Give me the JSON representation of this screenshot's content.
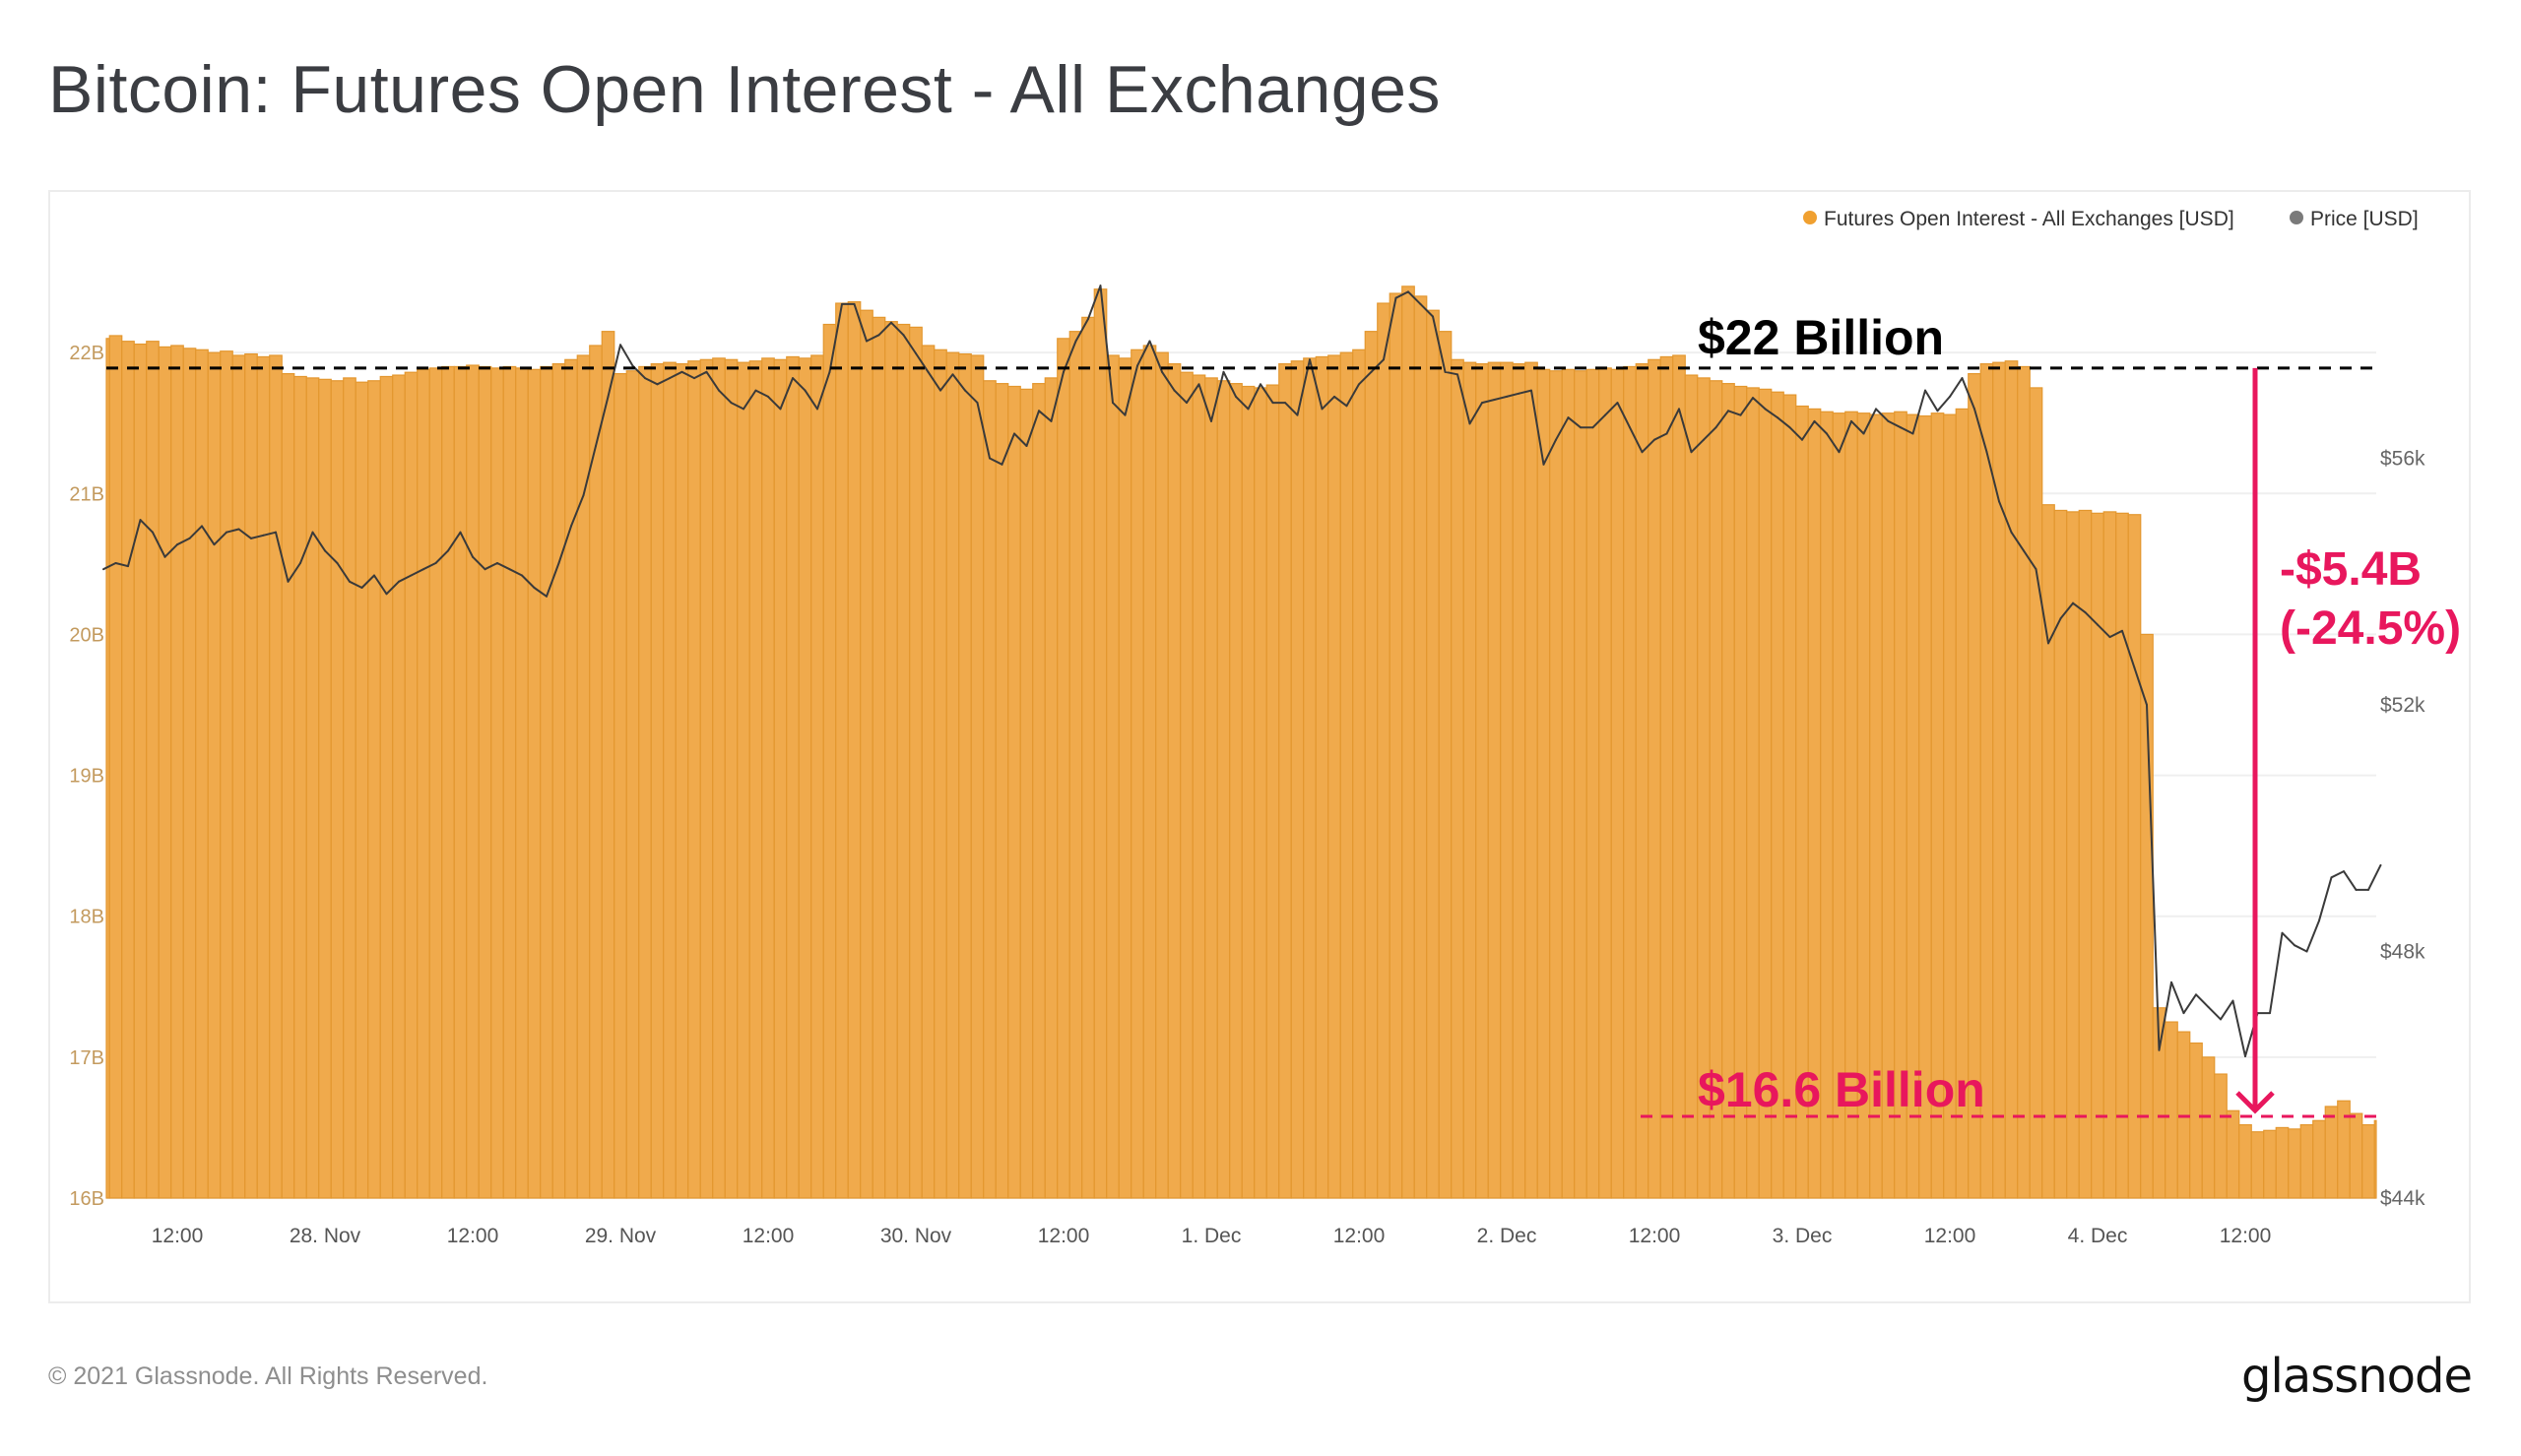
{
  "title": "Bitcoin: Futures Open Interest - All Exchanges",
  "footer": {
    "copyright": "© 2021 Glassnode. All Rights Reserved.",
    "logo": "glassnode"
  },
  "watermark": "glassnode",
  "colors": {
    "open_interest": "#f0aa4c",
    "open_interest_edge": "#e3972f",
    "price": "#3a3a3a",
    "annotation_red": "#e8175d",
    "annotation_black": "#000000"
  },
  "legend": [
    {
      "label": "Futures Open Interest - All Exchanges [USD]",
      "color": "#f0a030"
    },
    {
      "label": "Price [USD]",
      "color": "#7a7a7a"
    }
  ],
  "annotations": {
    "top_line_label": "$22 Billion",
    "top_line_value": 21.89,
    "bottom_line_label": "$16.6 Billion",
    "bottom_line_value": 16.58,
    "change_label": "-$5.4B",
    "change_pct_label": "(-24.5%)"
  },
  "chart_data": {
    "type": "bar+line",
    "title": "Bitcoin: Futures Open Interest - All Exchanges",
    "x_start": "2021-11-27 06:00",
    "x_step_hours": 1,
    "x_ticks": [
      {
        "hour": -12,
        "label": "12:00"
      },
      {
        "hour": 0,
        "label": "28. Nov"
      },
      {
        "hour": 12,
        "label": "12:00"
      },
      {
        "hour": 24,
        "label": "29. Nov"
      },
      {
        "hour": 36,
        "label": "12:00"
      },
      {
        "hour": 48,
        "label": "30. Nov"
      },
      {
        "hour": 60,
        "label": "12:00"
      },
      {
        "hour": 72,
        "label": "1. Dec"
      },
      {
        "hour": 84,
        "label": "12:00"
      },
      {
        "hour": 96,
        "label": "2. Dec"
      },
      {
        "hour": 108,
        "label": "12:00"
      },
      {
        "hour": 120,
        "label": "3. Dec"
      },
      {
        "hour": 132,
        "label": "12:00"
      },
      {
        "hour": 144,
        "label": "4. Dec"
      },
      {
        "hour": 156,
        "label": "12:00"
      }
    ],
    "y_left": {
      "ylim": [
        16,
        23
      ],
      "ticks": [
        16,
        17,
        18,
        19,
        20,
        21,
        22
      ],
      "tick_labels": [
        "16B",
        "17B",
        "18B",
        "19B",
        "20B",
        "21B",
        "22B"
      ],
      "grid": true
    },
    "y_right": {
      "ylim": [
        44,
        60
      ],
      "ticks": [
        44,
        48,
        52,
        56
      ],
      "tick_labels": [
        "$44k",
        "$48k",
        "$52k",
        "$56k"
      ]
    },
    "legend_position": "top-right",
    "series": [
      {
        "name": "Futures Open Interest - All Exchanges [USD]",
        "type": "bar",
        "axis": "left",
        "unit": "B USD",
        "values": [
          22.1,
          22.12,
          22.08,
          22.06,
          22.08,
          22.04,
          22.05,
          22.03,
          22.02,
          22.0,
          22.01,
          21.98,
          21.99,
          21.97,
          21.98,
          21.85,
          21.83,
          21.82,
          21.81,
          21.8,
          21.82,
          21.79,
          21.8,
          21.83,
          21.84,
          21.86,
          21.88,
          21.89,
          21.9,
          21.9,
          21.91,
          21.9,
          21.89,
          21.9,
          21.89,
          21.88,
          21.9,
          21.92,
          21.95,
          21.98,
          22.05,
          22.15,
          21.85,
          21.87,
          21.9,
          21.92,
          21.93,
          21.92,
          21.94,
          21.95,
          21.96,
          21.95,
          21.93,
          21.94,
          21.96,
          21.95,
          21.97,
          21.96,
          21.98,
          22.2,
          22.35,
          22.36,
          22.3,
          22.25,
          22.22,
          22.2,
          22.18,
          22.05,
          22.02,
          22.0,
          21.99,
          21.98,
          21.8,
          21.78,
          21.76,
          21.74,
          21.78,
          21.82,
          22.1,
          22.15,
          22.25,
          22.45,
          21.98,
          21.96,
          22.02,
          22.05,
          22.0,
          21.92,
          21.86,
          21.84,
          21.82,
          21.8,
          21.78,
          21.76,
          21.75,
          21.77,
          21.92,
          21.94,
          21.96,
          21.97,
          21.98,
          22.0,
          22.02,
          22.15,
          22.35,
          22.42,
          22.47,
          22.4,
          22.3,
          22.15,
          21.95,
          21.93,
          21.92,
          21.93,
          21.93,
          21.92,
          21.93,
          21.88,
          21.87,
          21.88,
          21.87,
          21.88,
          21.89,
          21.88,
          21.9,
          21.92,
          21.95,
          21.97,
          21.98,
          21.84,
          21.82,
          21.8,
          21.78,
          21.76,
          21.75,
          21.74,
          21.72,
          21.7,
          21.62,
          21.6,
          21.58,
          21.57,
          21.58,
          21.57,
          21.56,
          21.57,
          21.58,
          21.56,
          21.55,
          21.57,
          21.56,
          21.6,
          21.85,
          21.92,
          21.93,
          21.94,
          21.9,
          21.75,
          20.92,
          20.88,
          20.87,
          20.88,
          20.86,
          20.87,
          20.86,
          20.85,
          20.0,
          17.35,
          17.25,
          17.18,
          17.1,
          17.0,
          16.88,
          16.62,
          16.52,
          16.47,
          16.48,
          16.5,
          16.49,
          16.52,
          16.55,
          16.65,
          16.69,
          16.6,
          16.52,
          16.55
        ]
      },
      {
        "name": "Price [USD]",
        "type": "line",
        "axis": "right",
        "unit": "k USD",
        "values": [
          54.2,
          54.3,
          54.25,
          55.0,
          54.8,
          54.4,
          54.6,
          54.7,
          54.9,
          54.6,
          54.8,
          54.85,
          54.7,
          54.75,
          54.8,
          54.0,
          54.3,
          54.8,
          54.5,
          54.3,
          54.0,
          53.9,
          54.1,
          53.8,
          54.0,
          54.1,
          54.2,
          54.3,
          54.5,
          54.8,
          54.4,
          54.2,
          54.3,
          54.2,
          54.1,
          53.9,
          53.76,
          54.3,
          54.9,
          55.4,
          56.2,
          57.0,
          57.84,
          57.5,
          57.3,
          57.2,
          57.3,
          57.4,
          57.3,
          57.4,
          57.1,
          56.9,
          56.8,
          57.1,
          57.0,
          56.8,
          57.3,
          57.1,
          56.8,
          57.4,
          58.5,
          58.5,
          57.9,
          58.0,
          58.2,
          58.0,
          57.7,
          57.4,
          57.1,
          57.36,
          57.1,
          56.9,
          56.0,
          55.9,
          56.4,
          56.2,
          56.77,
          56.6,
          57.4,
          57.9,
          58.26,
          58.8,
          56.9,
          56.7,
          57.5,
          57.9,
          57.4,
          57.1,
          56.9,
          57.2,
          56.6,
          57.4,
          57.0,
          56.8,
          57.2,
          56.9,
          56.9,
          56.7,
          57.6,
          56.8,
          57.0,
          56.85,
          57.2,
          57.4,
          57.6,
          58.6,
          58.7,
          58.5,
          58.3,
          57.4,
          57.36,
          56.56,
          56.9,
          56.95,
          57.0,
          57.05,
          57.1,
          55.9,
          56.3,
          56.66,
          56.5,
          56.5,
          56.7,
          56.9,
          56.5,
          56.1,
          56.3,
          56.4,
          56.8,
          56.1,
          56.3,
          56.5,
          56.77,
          56.7,
          56.98,
          56.8,
          56.66,
          56.5,
          56.3,
          56.6,
          56.4,
          56.1,
          56.6,
          56.4,
          56.8,
          56.6,
          56.5,
          56.4,
          57.1,
          56.77,
          57.0,
          57.3,
          56.8,
          56.1,
          55.3,
          54.8,
          54.5,
          54.2,
          53.0,
          53.4,
          53.65,
          53.5,
          53.3,
          53.1,
          53.2,
          52.6,
          52.0,
          46.4,
          47.5,
          47.0,
          47.3,
          47.1,
          46.9,
          47.2,
          46.3,
          47.0,
          47.0,
          48.3,
          48.1,
          48.0,
          48.5,
          49.2,
          49.3,
          49.0,
          49.0,
          49.4
        ]
      }
    ]
  }
}
